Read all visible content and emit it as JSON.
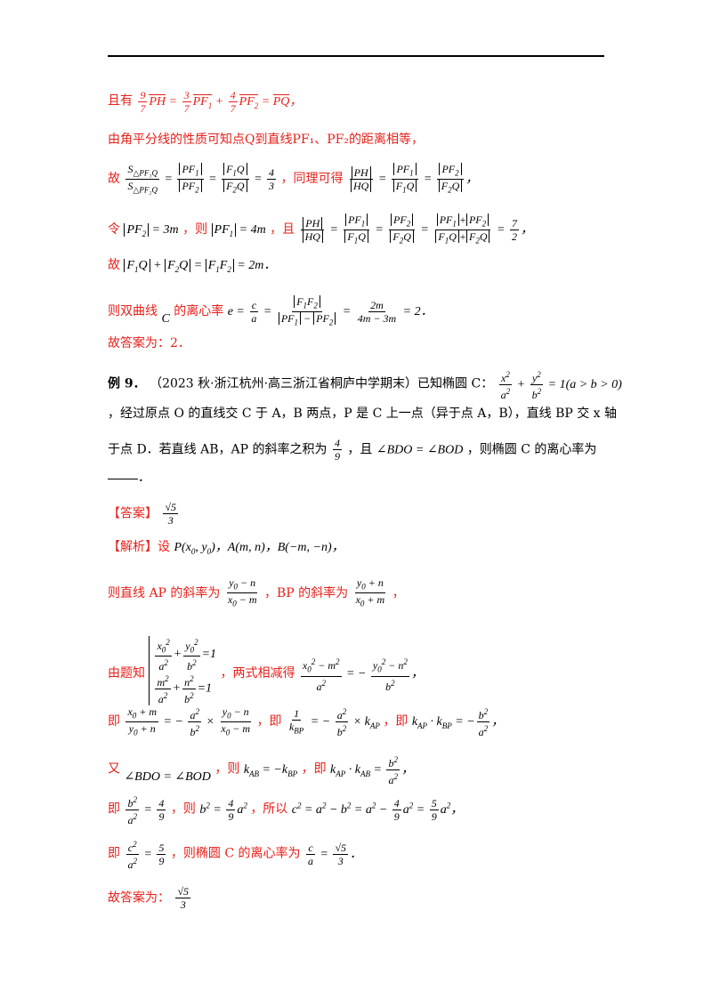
{
  "header_rule": true,
  "lines": {
    "l1": "且有",
    "l1_eq": "9/7 PH = 3/7 PF₁ + 4/7 PF₂ = PQ，",
    "l2": "由角平分线的性质可知点Q到直线PF₁、PF₂的距离相等，",
    "l3_a": "故",
    "l3_eq1": "S△PF₁Q / S△PF₂Q = |PF₁| / |PF₂| = |F₁Q| / |F₂Q| = 4/3",
    "l3_b": "，同理可得",
    "l3_eq2": "|PH|/|HQ| = |PF₁|/|F₁Q| = |PF₂|/|F₂Q|，",
    "l4_a": "令",
    "l4_eq1": "|PF₂| = 3m",
    "l4_b": "，则",
    "l4_eq2": "|PF₁| = 4m",
    "l4_c": "，且",
    "l4_eq3": "|PH|/|HQ| = |PF₁|/|F₁Q| = |PF₂|/|F₂Q| = (|PF₁|+|PF₂|)/(|F₁Q|+|F₂Q|) = 7/2，",
    "l5_a": "故",
    "l5_eq": "|F₁Q| + |F₂Q| = |F₁F₂| = 2m．",
    "l6_a": "则双曲线",
    "l6_c": "C",
    "l6_b": "的离心率",
    "l6_eq": "e = c/a = |F₁F₂| / (|PF₁| − |PF₂|) = 2m/(4m − 3m) = 2．",
    "l7": "故答案为：2．",
    "ex9_label": "例 9．",
    "ex9_src": "（2023 秋·浙江杭州·高三浙江省桐庐中学期末）已知椭圆 C：",
    "ex9_eq": "x²/a² + y²/b² = 1(a > b > 0)",
    "ex9_l2": "，经过原点 O 的直线交 C 于 A，B 两点，P 是 C 上一点（异于点 A，B），直线 BP 交 x 轴",
    "ex9_l3_a": "于点 D．若直线 AB，AP 的斜率之积为",
    "ex9_l3_frac": "4/9",
    "ex9_l3_b": "，且",
    "ex9_l3_eq": "∠BDO = ∠BOD",
    "ex9_l3_c": "，则椭圆 C 的离心率为",
    "ex9_l4": "．",
    "ans_tag": "【答案】",
    "ans_val": "√5/3",
    "sol_tag": "【解析】设",
    "sol_pts": "P(x₀, y₀)，A(m, n)，B(−m, −n)，",
    "s2_a": "则直线 AP 的斜率为",
    "s2_f1": "(y₀ − n)/(x₀ − m)",
    "s2_b": "，BP 的斜率为",
    "s2_f2": "(y₀ + n)/(x₀ + m)",
    "s2_c": "，",
    "s3_a": "由题知",
    "s3_sys1": "x₀²/a² + y₀²/b² = 1",
    "s3_sys2": "m²/a² + n²/b² = 1",
    "s3_b": "，两式相减得",
    "s3_eq": "(x₀² − m²)/a² = −(y₀² − n²)/b²，",
    "s4_a": "即",
    "s4_eq1": "(x₀ + m)/(y₀ + n) = −a²/b² × (y₀ − n)/(x₀ − m)",
    "s4_b": "，即",
    "s4_eq2": "1/k_BP = −a²/b² × k_AP",
    "s4_c": "，即",
    "s4_eq3": "k_AP · k_BP = −b²/a²，",
    "s5_a": "又",
    "s5_eq1": "∠BDO = ∠BOD",
    "s5_b": "，则",
    "s5_eq2": "k_AB = −k_BP",
    "s5_c": "，即",
    "s5_eq3": "k_AP · k_AB = b²/a²，",
    "s6_a": "即",
    "s6_eq1": "b²/a² = 4/9",
    "s6_b": "，则",
    "s6_eq2": "b² = 4/9 a²",
    "s6_c": "，所以",
    "s6_eq3": "c² = a² − b² = a² − 4/9 a² = 5/9 a²，",
    "s7_a": "即",
    "s7_eq1": "c²/a² = 5/9",
    "s7_b": "，则椭圆 C 的离心率为",
    "s7_eq2": "c/a = √5/3．",
    "s8_a": "故答案为：",
    "s8_val": "√5/3"
  },
  "colors": {
    "red": "#e8201b",
    "black": "#000000"
  }
}
